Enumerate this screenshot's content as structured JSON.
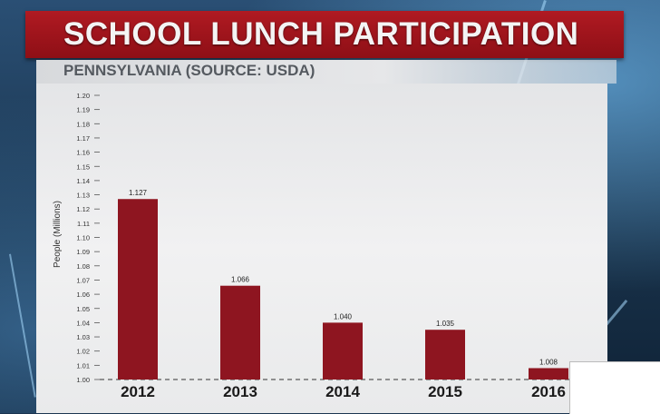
{
  "title": "SCHOOL LUNCH PARTICIPATION",
  "subtitle": "PENNSYLVANIA (SOURCE: USDA)",
  "colors": {
    "bar": "#8e1520",
    "title_bar": "#a3151c",
    "panel": "#eaeaeb"
  },
  "chart_data": {
    "type": "bar",
    "categories": [
      "2012",
      "2013",
      "2014",
      "2015",
      "2016"
    ],
    "values": [
      1.127,
      1.066,
      1.04,
      1.035,
      1.008
    ],
    "value_labels": [
      "1.127",
      "1.066",
      "1.040",
      "1.035",
      "1.008"
    ],
    "ylabel": "People (Millions)",
    "xlabel": "",
    "ylim": [
      1.0,
      1.2
    ],
    "y_ticks": [
      "1.00",
      "1.01",
      "1.02",
      "1.03",
      "1.04",
      "1.05",
      "1.06",
      "1.07",
      "1.08",
      "1.09",
      "1.10",
      "1.11",
      "1.12",
      "1.13",
      "1.14",
      "1.15",
      "1.16",
      "1.17",
      "1.18",
      "1.19",
      "1.20"
    ],
    "grid": false,
    "baseline": "dashed"
  }
}
